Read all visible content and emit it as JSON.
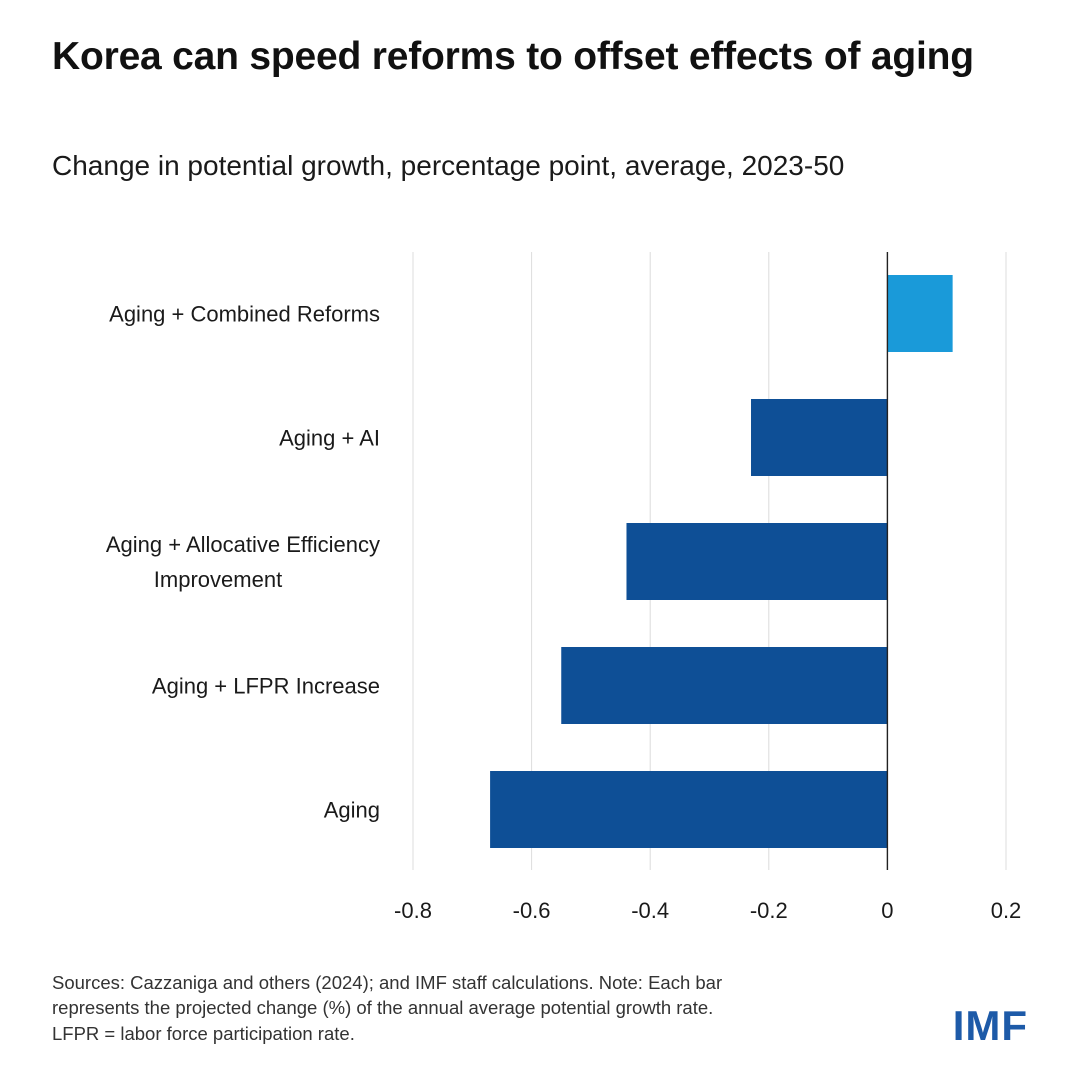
{
  "header": {
    "title": "Korea can speed reforms to offset effects of aging",
    "subtitle": "Change in potential growth, percentage point, average, 2023-50"
  },
  "chart_data": {
    "type": "bar",
    "orientation": "horizontal",
    "categories": [
      [
        "Aging + Combined Reforms"
      ],
      [
        "Aging + AI"
      ],
      [
        "Aging + Allocative Efficiency",
        "Improvement"
      ],
      [
        "Aging + LFPR Increase"
      ],
      [
        "Aging"
      ]
    ],
    "values": [
      0.11,
      -0.23,
      -0.44,
      -0.55,
      -0.67
    ],
    "colors": [
      "#1a9ad9",
      "#0e4f96",
      "#0e4f96",
      "#0e4f96",
      "#0e4f96"
    ],
    "xlim": [
      -0.8,
      0.2
    ],
    "xticks": [
      -0.8,
      -0.6,
      -0.4,
      -0.2,
      0,
      0.2
    ],
    "xtick_labels": [
      "-0.8",
      "-0.6",
      "-0.4",
      "-0.2",
      "0",
      "0.2"
    ],
    "grid": "vertical",
    "xlabel": "",
    "ylabel": ""
  },
  "footnote": {
    "lines": [
      "Sources: Cazzaniga and others (2024); and IMF staff calculations. Note: Each bar",
      "represents the projected change (%) of the annual average potential growth rate.",
      "LFPR = labor force participation rate."
    ]
  },
  "logo": {
    "text": "IMF",
    "color": "#1d5aa8"
  }
}
